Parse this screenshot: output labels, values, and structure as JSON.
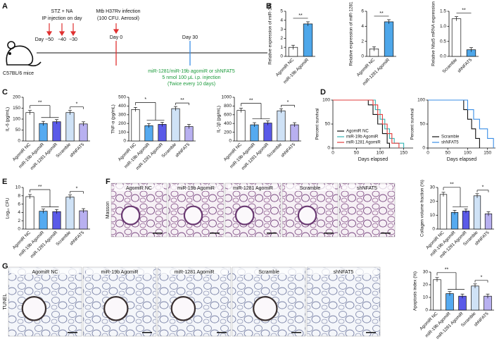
{
  "panel_labels": [
    "A",
    "B",
    "C",
    "D",
    "E",
    "F",
    "G"
  ],
  "timeline": {
    "strain": "C57BL/6 mice",
    "stz_title": "STZ + NA",
    "stz_sub": "IP injection on day",
    "days": [
      "Day −50",
      "−40",
      "−30"
    ],
    "infection_title": "Mtb H37Rv infection",
    "infection_sub": "(100 CFU. Aerosol)",
    "day0": "Day 0",
    "day30": "Day 30",
    "treatment": [
      "miR-1281/miR-19b agomiR or shNFAT5",
      "5 nmol 100 μL i.p. injection",
      "(Twice every 10 days)"
    ]
  },
  "histology": {
    "masson": {
      "stain": "Masson",
      "labels": [
        "AgomiR NC",
        "miR-19b AgomiR",
        "miR-1281 AgomiR",
        "Scramble",
        "shNFAT5"
      ]
    },
    "tunel": {
      "stain": "TUNEL",
      "labels": [
        "AgomiR NC",
        "miR-19b AgomiR",
        "miR-1281 AgomiR",
        "Scramble",
        "shNFAT5"
      ]
    }
  },
  "chart_data": [
    {
      "type": "bar",
      "ylabel": "Relative expression of miR-19b",
      "categories": [
        "AgomiR NC",
        "miR-19b AgomiR"
      ],
      "values": [
        1.0,
        3.6
      ],
      "colors": [
        "#ffffff",
        "#4ea7ea"
      ],
      "ylim": [
        0,
        5
      ],
      "yticks": [
        0,
        1,
        2,
        3,
        4,
        5
      ],
      "significance": [
        "**"
      ]
    },
    {
      "type": "bar",
      "ylabel": "Relative expression of miR-1281",
      "categories": [
        "AgomiR NC",
        "miR-1281 AgomiR"
      ],
      "values": [
        1.0,
        4.6
      ],
      "colors": [
        "#ffffff",
        "#4ea7ea"
      ],
      "ylim": [
        0,
        6
      ],
      "yticks": [
        0,
        2,
        4,
        6
      ],
      "significance": [
        "**"
      ]
    },
    {
      "type": "bar",
      "ylabel": "Relative Nfat5 mRNA expression",
      "categories": [
        "Scramble",
        "shNFAT5"
      ],
      "values": [
        1.25,
        0.22
      ],
      "colors": [
        "#ffffff",
        "#4ea7ea"
      ],
      "ylim": [
        0,
        1.5
      ],
      "yticks": [
        {
          "value": 0,
          "label": "0.0"
        },
        0.5,
        {
          "value": 1,
          "label": "1.0"
        },
        1.5
      ],
      "significance": [
        "**"
      ]
    },
    {
      "type": "bar",
      "ylabel": "IL-6 (pg/mL)",
      "categories": [
        "AgomiR NC",
        "miR-19b AgomiR",
        "miR-1281 AgomiR",
        "Scramble",
        "shNFAT5"
      ],
      "values": [
        130,
        80,
        88,
        130,
        78
      ],
      "colors": [
        "#ffffff",
        "#55aaf0",
        "#5a5ae8",
        "#cfe2f6",
        "#b8b0f0"
      ],
      "ylim": [
        0,
        200
      ],
      "yticks": [
        0,
        50,
        100,
        150,
        200
      ],
      "significance": [
        "**",
        "*"
      ]
    },
    {
      "type": "bar",
      "ylabel": "TNF-α (pg/mL)",
      "categories": [
        "AgomiR NC",
        "miR-19b AgomiR",
        "miR-1281 AgomiR",
        "Scramble",
        "shNFAT5"
      ],
      "values": [
        360,
        175,
        190,
        370,
        165
      ],
      "colors": [
        "#ffffff",
        "#55aaf0",
        "#5a5ae8",
        "#cfe2f6",
        "#b8b0f0"
      ],
      "ylim": [
        0,
        500
      ],
      "yticks": [
        0,
        100,
        200,
        300,
        400,
        500
      ],
      "significance": [
        "*",
        "**"
      ]
    },
    {
      "type": "bar",
      "ylabel": "IL-1β (pg/mL)",
      "categories": [
        "AgomiR NC",
        "miR-19b AgomiR",
        "miR-1281 AgomiR",
        "Scramble",
        "shNFAT5"
      ],
      "values": [
        700,
        370,
        410,
        690,
        370
      ],
      "colors": [
        "#ffffff",
        "#55aaf0",
        "#5a5ae8",
        "#cfe2f6",
        "#b8b0f0"
      ],
      "ylim": [
        0,
        1000
      ],
      "yticks": [
        0,
        200,
        400,
        600,
        800,
        1000
      ],
      "significance": [
        "**",
        "*"
      ]
    },
    {
      "type": "line",
      "ylabel": "Percent survival",
      "xlabel": "Days elapsed",
      "legend": "lower-left",
      "xlim": [
        0,
        170
      ],
      "xticks": [
        0,
        50,
        100,
        150
      ],
      "ylim": [
        0,
        100
      ],
      "yticks": [
        0,
        50,
        100
      ],
      "series": [
        {
          "name": "AgomiR NC",
          "color": "#111111",
          "x": [
            0,
            75,
            75,
            85,
            85,
            95,
            95,
            105,
            105,
            115,
            115,
            120,
            120
          ],
          "values": [
            100,
            100,
            90,
            90,
            70,
            70,
            50,
            50,
            30,
            30,
            10,
            10,
            0
          ]
        },
        {
          "name": "miR-19b AgomiR",
          "color": "#35b5b5",
          "x": [
            0,
            90,
            90,
            100,
            100,
            110,
            110,
            120,
            120,
            130,
            130,
            150,
            150
          ],
          "values": [
            100,
            100,
            80,
            80,
            60,
            60,
            40,
            40,
            20,
            20,
            10,
            10,
            0
          ]
        },
        {
          "name": "miR-1281 AgomiR",
          "color": "#e23b3b",
          "x": [
            0,
            85,
            85,
            95,
            95,
            105,
            105,
            115,
            115,
            125,
            125,
            140,
            140
          ],
          "values": [
            100,
            100,
            90,
            90,
            70,
            70,
            50,
            50,
            30,
            30,
            10,
            10,
            0
          ]
        }
      ]
    },
    {
      "type": "line",
      "ylabel": "Percent survival",
      "xlabel": "Days elapsed",
      "legend": "lower-left",
      "xlim": [
        0,
        170
      ],
      "xticks": [
        0,
        50,
        100,
        150
      ],
      "ylim": [
        0,
        100
      ],
      "yticks": [
        0,
        50,
        100
      ],
      "series": [
        {
          "name": "Scramble",
          "color": "#111111",
          "x": [
            0,
            90,
            90,
            100,
            100,
            110,
            110,
            120,
            120,
            130,
            130
          ],
          "values": [
            100,
            100,
            80,
            80,
            60,
            60,
            40,
            40,
            20,
            20,
            0
          ]
        },
        {
          "name": "shNFAT5",
          "color": "#3a8ee6",
          "x": [
            0,
            100,
            100,
            115,
            115,
            130,
            130,
            150,
            150,
            165,
            165
          ],
          "values": [
            100,
            100,
            80,
            80,
            60,
            60,
            40,
            40,
            20,
            20,
            0
          ]
        }
      ]
    },
    {
      "type": "bar",
      "ylabel": "Log₁₀ CFU",
      "categories": [
        "AgomiR NC",
        "miR-19b AgomiR",
        "miR-1281 AgomiR",
        "Scramble",
        "shNFAT5"
      ],
      "values": [
        7.8,
        4.3,
        4.2,
        7.7,
        4.4
      ],
      "colors": [
        "#ffffff",
        "#55aaf0",
        "#5a5ae8",
        "#cfe2f6",
        "#b8b0f0"
      ],
      "ylim": [
        0,
        10
      ],
      "yticks": [
        0,
        2,
        4,
        6,
        8,
        10
      ],
      "significance": [
        "**",
        "*"
      ]
    },
    {
      "type": "bar",
      "ylabel": "Collagen volume fraction (%)",
      "categories": [
        "AgomiR NC",
        "miR-19b AgomiR",
        "miR-1281 AgomiR",
        "Scramble",
        "shNFAT5"
      ],
      "values": [
        25,
        12,
        13,
        24,
        11
      ],
      "colors": [
        "#ffffff",
        "#55aaf0",
        "#5a5ae8",
        "#cfe2f6",
        "#b8b0f0"
      ],
      "ylim": [
        0,
        30
      ],
      "yticks": [
        0,
        10,
        20,
        30
      ],
      "significance": [
        "**",
        "*"
      ]
    },
    {
      "type": "bar",
      "ylabel": "Apoptosis index (%)",
      "categories": [
        "AgomiR NC",
        "miR-19b AgomiR",
        "miR-1281 AgomiR",
        "Scramble",
        "shNFAT5"
      ],
      "values": [
        24,
        13,
        11,
        19,
        11
      ],
      "colors": [
        "#ffffff",
        "#55aaf0",
        "#5a5ae8",
        "#cfe2f6",
        "#b8b0f0"
      ],
      "ylim": [
        0,
        30
      ],
      "yticks": [
        0,
        10,
        20,
        30
      ],
      "significance": [
        "**",
        "*"
      ]
    }
  ]
}
